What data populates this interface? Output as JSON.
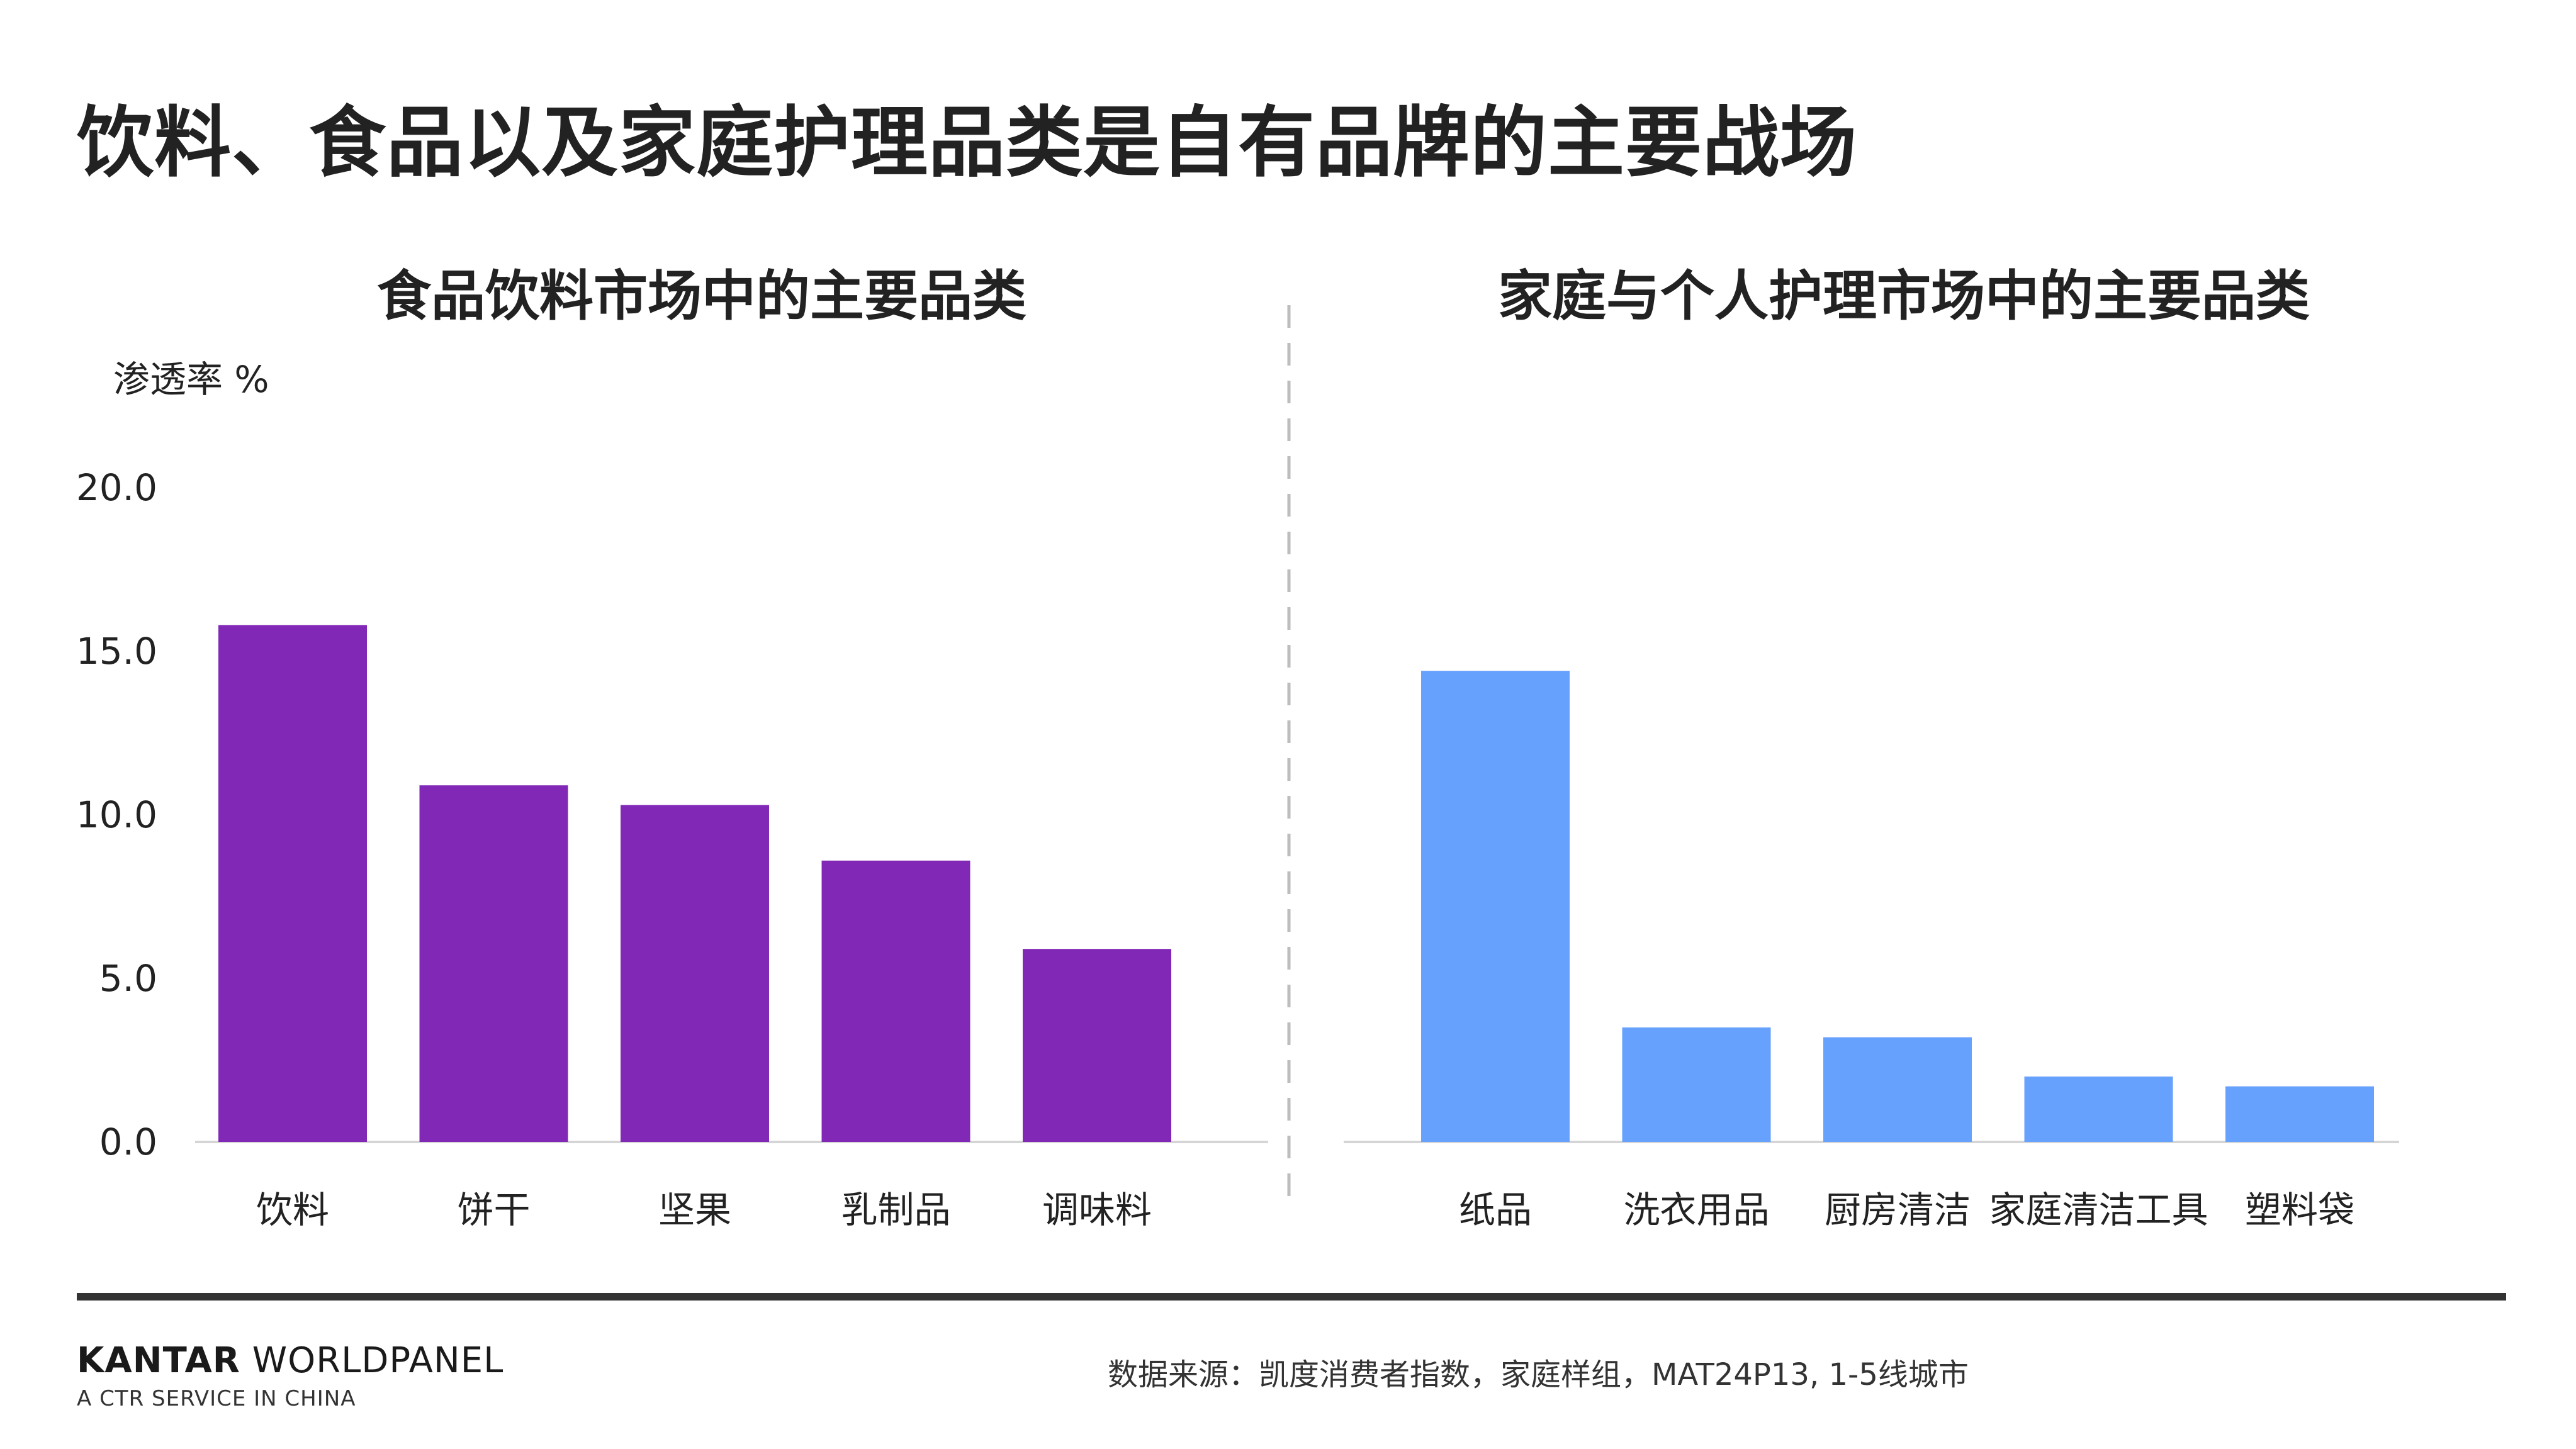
{
  "page": {
    "title": "饮料、食品以及家庭护理品类是自有品牌的主要战场"
  },
  "footer": {
    "brand_strong": "KANTAR",
    "brand_rest": "WORLDPANEL",
    "brand_sub": "A CTR SERVICE IN CHINA",
    "source": "数据来源：凯度消费者指数，家庭样组，MAT24P13, 1-5线城市"
  },
  "colors": {
    "food": "#8128b6",
    "home": "#66a1fd",
    "axis": "#d5d5d5",
    "divider": "#bdbdbd",
    "text": "#222222"
  },
  "chart_data": [
    {
      "type": "bar",
      "title": "食品饮料市场中的主要品类",
      "ylabel": "渗透率 %",
      "ylim": [
        0,
        20
      ],
      "yticks": [
        "0.0",
        "5.0",
        "10.0",
        "15.0",
        "20.0"
      ],
      "categories": [
        "饮料",
        "饼干",
        "坚果",
        "乳制品",
        "调味料"
      ],
      "values": [
        15.8,
        10.9,
        10.3,
        8.6,
        5.9
      ],
      "color": "#8128b6",
      "grid": false
    },
    {
      "type": "bar",
      "title": "家庭与个人护理市场中的主要品类",
      "ylabel": "渗透率 %",
      "ylim": [
        0,
        20
      ],
      "categories": [
        "纸品",
        "洗衣用品",
        "厨房清洁",
        "家庭清洁工具",
        "塑料袋"
      ],
      "values": [
        14.4,
        3.5,
        3.2,
        2.0,
        1.7
      ],
      "color": "#66a1fd",
      "grid": false
    }
  ]
}
